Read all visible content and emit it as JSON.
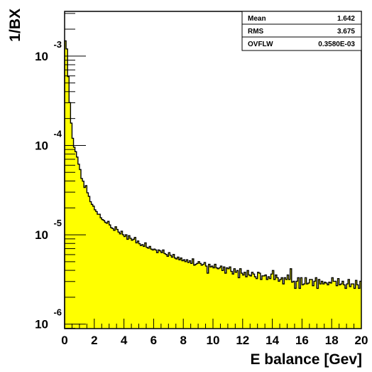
{
  "chart_data": {
    "type": "area",
    "xlabel": "E balance [Gev]",
    "ylabel": "1/BX",
    "xlim": [
      0,
      20
    ],
    "ylim_log10": [
      -6.05,
      -2.5
    ],
    "y_scale": "log",
    "grid": false,
    "fill_color": "#ffff00",
    "line_color": "#000000",
    "x_ticks": [
      0,
      2,
      4,
      6,
      8,
      10,
      12,
      14,
      16,
      18,
      20
    ],
    "x_tick_labels": [
      "0",
      "2",
      "4",
      "6",
      "8",
      "10",
      "12",
      "14",
      "16",
      "18",
      "20"
    ],
    "y_ticks": [
      {
        "base": "10",
        "exp": "-3",
        "value": 0.001
      },
      {
        "base": "10",
        "exp": "-4",
        "value": 0.0001
      },
      {
        "base": "10",
        "exp": "-5",
        "value": 1e-05
      },
      {
        "base": "10",
        "exp": "-6",
        "value": 1e-06
      }
    ],
    "bin_width": 0.1,
    "series": [
      {
        "values_log10": [
          -2.83,
          -2.92,
          -3.23,
          -3.52,
          -3.75,
          -3.92,
          -4.02,
          -4.07,
          -4.13,
          -4.21,
          -4.27,
          -4.37,
          -4.4,
          -4.47,
          -4.45,
          -4.53,
          -4.57,
          -4.63,
          -4.66,
          -4.68,
          -4.72,
          -4.74,
          -4.77,
          -4.77,
          -4.81,
          -4.83,
          -4.84,
          -4.86,
          -4.87,
          -4.85,
          -4.89,
          -4.92,
          -4.93,
          -4.95,
          -4.91,
          -4.94,
          -4.97,
          -4.99,
          -4.96,
          -5.0,
          -5.02,
          -5.0,
          -5.05,
          -5.01,
          -5.04,
          -5.06,
          -5.05,
          -5.03,
          -5.09,
          -5.07,
          -5.1,
          -5.12,
          -5.11,
          -5.13,
          -5.09,
          -5.14,
          -5.15,
          -5.13,
          -5.16,
          -5.17,
          -5.16,
          -5.17,
          -5.2,
          -5.17,
          -5.18,
          -5.2,
          -5.17,
          -5.21,
          -5.22,
          -5.24,
          -5.2,
          -5.23,
          -5.25,
          -5.22,
          -5.26,
          -5.27,
          -5.25,
          -5.28,
          -5.26,
          -5.29,
          -5.28,
          -5.3,
          -5.28,
          -5.31,
          -5.29,
          -5.32,
          -5.27,
          -5.34,
          -5.33,
          -5.32,
          -5.3,
          -5.32,
          -5.34,
          -5.33,
          -5.31,
          -5.35,
          -5.43,
          -5.33,
          -5.36,
          -5.35,
          -5.37,
          -5.33,
          -5.37,
          -5.38,
          -5.37,
          -5.35,
          -5.4,
          -5.36,
          -5.43,
          -5.37,
          -5.38,
          -5.36,
          -5.41,
          -5.44,
          -5.38,
          -5.42,
          -5.4,
          -5.48,
          -5.38,
          -5.43,
          -5.45,
          -5.42,
          -5.47,
          -5.4,
          -5.45,
          -5.46,
          -5.42,
          -5.44,
          -5.47,
          -5.49,
          -5.42,
          -5.43,
          -5.5,
          -5.46,
          -5.46,
          -5.45,
          -5.5,
          -5.47,
          -5.49,
          -5.44,
          -5.4,
          -5.5,
          -5.45,
          -5.48,
          -5.52,
          -5.5,
          -5.48,
          -5.55,
          -5.48,
          -5.5,
          -5.45,
          -5.5,
          -5.38,
          -5.53,
          -5.52,
          -5.6,
          -5.52,
          -5.48,
          -5.6,
          -5.48,
          -5.56,
          -5.55,
          -5.48,
          -5.55,
          -5.54,
          -5.5,
          -5.5,
          -5.57,
          -5.52,
          -5.48,
          -5.6,
          -5.5,
          -5.55,
          -5.52,
          -5.55,
          -5.53,
          -5.54,
          -5.56,
          -5.53,
          -5.54,
          -5.48,
          -5.52,
          -5.52,
          -5.57,
          -5.49,
          -5.56,
          -5.55,
          -5.52,
          -5.56,
          -5.6,
          -5.55,
          -5.5,
          -5.58,
          -5.55,
          -5.55,
          -5.6,
          -5.51,
          -5.56,
          -5.6,
          -5.52
        ]
      }
    ],
    "stats": [
      {
        "label": "Mean",
        "value": "1.642"
      },
      {
        "label": "RMS",
        "value": "3.675"
      },
      {
        "label": "OVFLW",
        "value": "0.3580E-03"
      }
    ]
  }
}
